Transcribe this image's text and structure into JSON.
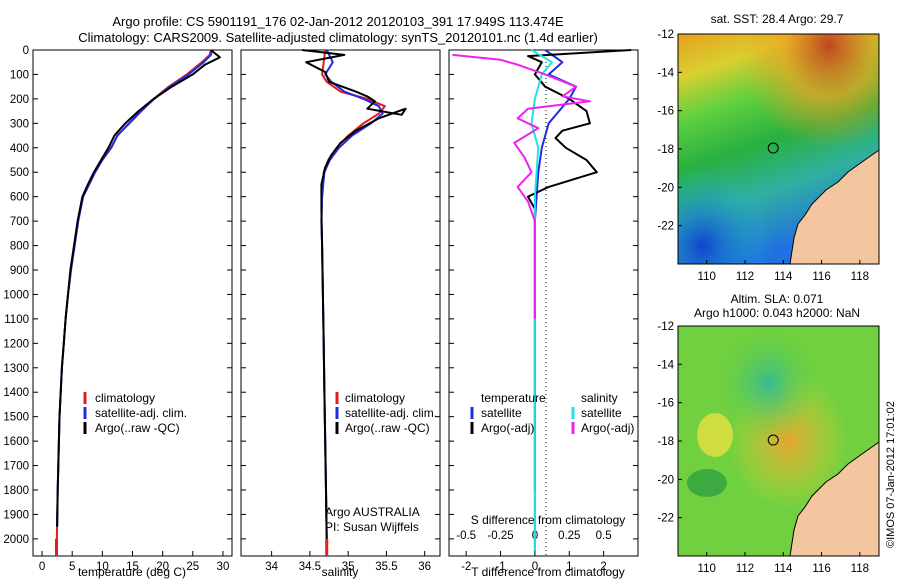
{
  "header": {
    "title_line1": "Argo profile: CS 5901191_176 02-Jan-2012 20120103_391 17.949S 113.474E",
    "title_line2": "Climatology: CARS2009. Satellite-adjusted climatology: synTS_20120101.nc (1.4d earlier)"
  },
  "colors": {
    "climatology": "#e41a1c",
    "satellite": "#1f2ee0",
    "argo": "#000000",
    "salinity_satellite": "#22e3e3",
    "salinity_argo": "#ee22ee",
    "land": "#f4c6a0"
  },
  "depth_axis": {
    "ticks": [
      0,
      100,
      200,
      300,
      400,
      500,
      600,
      700,
      800,
      900,
      1000,
      1100,
      1200,
      1300,
      1400,
      1500,
      1600,
      1700,
      1800,
      1900,
      2000
    ],
    "range": [
      0,
      2070
    ]
  },
  "chart_data": [
    {
      "type": "line",
      "name": "temperature-panel",
      "xlabel": "temperature (deg C)",
      "xlim": [
        -1.5,
        31.5
      ],
      "xticks": [
        0,
        5,
        10,
        15,
        20,
        25,
        30
      ],
      "ylim": [
        0,
        2070
      ],
      "legend": {
        "placement": "lower-left",
        "entries": [
          "climatology",
          "satellite-adj. clim.",
          "Argo(..raw -QC)"
        ]
      },
      "series": [
        {
          "color_key": "climatology",
          "x": [
            28.0,
            27.8,
            26.5,
            24.0,
            21.0,
            18.5,
            16.5,
            14.5,
            12.5,
            11.5,
            10.0,
            8.8,
            7.8,
            6.8,
            6.0,
            5.4,
            4.8,
            4.3,
            3.9,
            3.6,
            3.3,
            3.1,
            2.9,
            2.8,
            2.6,
            2.5,
            2.4
          ],
          "depth": [
            0,
            20,
            50,
            100,
            150,
            200,
            250,
            300,
            350,
            400,
            450,
            500,
            550,
            600,
            700,
            800,
            900,
            1000,
            1100,
            1200,
            1300,
            1400,
            1500,
            1600,
            1800,
            1950,
            2050
          ]
        },
        {
          "color_key": "satellite",
          "x": [
            28.2,
            28.0,
            26.8,
            24.3,
            21.2,
            18.6,
            16.4,
            14.4,
            12.5,
            11.4,
            10.0,
            8.8,
            7.8,
            6.8,
            6.0,
            5.4,
            4.8,
            4.3,
            3.9,
            3.6,
            3.3,
            3.1,
            2.9,
            2.8,
            2.6,
            2.5
          ],
          "depth": [
            0,
            20,
            50,
            100,
            150,
            200,
            250,
            300,
            350,
            400,
            450,
            500,
            550,
            600,
            700,
            800,
            900,
            1000,
            1100,
            1200,
            1300,
            1400,
            1500,
            1600,
            1800,
            1950
          ]
        },
        {
          "color_key": "argo",
          "x": [
            28.0,
            29.5,
            27.0,
            25.0,
            21.5,
            18.5,
            16.0,
            13.8,
            12.0,
            11.0,
            9.8,
            8.6,
            7.6,
            6.7,
            5.9,
            5.3,
            4.7,
            4.3,
            3.9,
            3.6,
            3.3,
            3.1,
            2.9,
            2.8,
            2.6,
            2.5
          ],
          "depth": [
            0,
            30,
            60,
            100,
            150,
            200,
            250,
            300,
            350,
            400,
            450,
            500,
            550,
            600,
            700,
            800,
            900,
            1000,
            1100,
            1200,
            1300,
            1400,
            1500,
            1600,
            1800,
            1950
          ]
        }
      ]
    },
    {
      "type": "line",
      "name": "salinity-panel",
      "xlabel": "salinity",
      "xlim": [
        33.6,
        36.2
      ],
      "xticks": [
        34,
        34.5,
        35,
        35.5,
        36
      ],
      "ylim": [
        0,
        2070
      ],
      "legend": {
        "placement": "lower-right",
        "entries": [
          "climatology",
          "satellite-adj. clim.",
          "Argo(..raw -QC)"
        ]
      },
      "annotation": {
        "line1": "Argo AUSTRALIA",
        "line2": "PI: Susan Wijffels"
      },
      "series": [
        {
          "color_key": "climatology",
          "x": [
            34.7,
            34.68,
            34.66,
            34.72,
            34.9,
            35.25,
            35.48,
            35.4,
            35.2,
            35.0,
            34.85,
            34.74,
            34.68,
            34.66,
            34.65,
            34.66,
            34.67,
            34.68,
            34.69,
            34.7,
            34.71,
            34.72,
            34.72
          ],
          "depth": [
            0,
            50,
            100,
            130,
            170,
            200,
            230,
            260,
            300,
            350,
            400,
            450,
            500,
            600,
            700,
            800,
            1000,
            1200,
            1400,
            1600,
            1800,
            2000,
            2050
          ]
        },
        {
          "color_key": "satellite",
          "x": [
            34.72,
            34.8,
            34.7,
            34.78,
            34.95,
            35.2,
            35.4,
            35.45,
            35.3,
            35.05,
            34.88,
            34.76,
            34.69,
            34.66,
            34.65,
            34.66,
            34.67,
            34.68,
            34.69,
            34.7,
            34.71,
            34.72
          ],
          "depth": [
            0,
            50,
            100,
            130,
            170,
            200,
            230,
            260,
            300,
            350,
            400,
            450,
            500,
            600,
            700,
            800,
            1000,
            1200,
            1400,
            1600,
            1800,
            2000
          ]
        },
        {
          "color_key": "argo",
          "x": [
            34.4,
            34.95,
            34.45,
            34.7,
            34.75,
            35.1,
            35.25,
            35.35,
            35.25,
            35.7,
            35.75,
            35.4,
            35.1,
            34.9,
            34.78,
            34.7,
            34.65,
            34.65,
            34.66,
            34.67,
            34.68,
            34.69,
            34.7,
            34.71,
            34.72
          ],
          "depth": [
            0,
            20,
            50,
            90,
            130,
            170,
            190,
            210,
            240,
            265,
            240,
            280,
            330,
            380,
            430,
            480,
            550,
            650,
            800,
            1000,
            1200,
            1400,
            1600,
            1800,
            2000
          ]
        }
      ]
    },
    {
      "type": "line",
      "name": "difference-panel",
      "xlabel": "T difference from climatology",
      "x2label": "S difference from climatology",
      "xlim": [
        -2.5,
        3.0
      ],
      "xticks": [
        -2,
        -1,
        0,
        1,
        2
      ],
      "x2ticks": [
        -0.5,
        -0.25,
        0,
        0.25,
        0.5
      ],
      "ylim": [
        0,
        2070
      ],
      "legend": {
        "placement": "lower-center",
        "temperature_title": "temperature",
        "salinity_title": "salinity",
        "entries": [
          "satellite",
          "Argo(-adj)"
        ]
      },
      "series": [
        {
          "color_key": "satellite",
          "x": [
            0.3,
            0.8,
            0.4,
            1.2,
            1.0,
            0.7,
            0.4,
            0.3,
            0.2,
            0.1,
            0.05,
            0.0,
            0.0,
            0.0,
            0.0,
            0.0,
            0.0
          ],
          "depth": [
            0,
            50,
            100,
            150,
            200,
            250,
            300,
            350,
            400,
            500,
            600,
            700,
            800,
            1000,
            1400,
            1800,
            2050
          ]
        },
        {
          "color_key": "argo",
          "x": [
            2.8,
            -0.2,
            0.2,
            0.0,
            0.3,
            1.0,
            1.5,
            1.6,
            0.8,
            0.6,
            0.9,
            1.5,
            1.8,
            0.4,
            -0.2,
            0.0,
            0.0,
            0.0,
            0.0,
            0.0
          ],
          "depth": [
            0,
            25,
            50,
            100,
            150,
            200,
            250,
            300,
            330,
            360,
            400,
            450,
            500,
            560,
            600,
            650,
            800,
            1000,
            1400,
            1800
          ]
        },
        {
          "color_key": "salinity_satellite",
          "x": [
            -0.1,
            0.5,
            0.2,
            0.0,
            -0.1,
            0.1,
            0.0,
            0.0,
            0.0,
            0.0,
            0.0,
            0.0
          ],
          "depth": [
            0,
            50,
            100,
            200,
            300,
            400,
            600,
            800,
            1000,
            1400,
            1800,
            2050
          ]
        },
        {
          "color_key": "salinity_argo",
          "x": [
            -2.4,
            -1.0,
            -0.5,
            0.3,
            1.2,
            0.8,
            1.6,
            -0.2,
            -0.5,
            0.1,
            -0.6,
            -0.3,
            -0.1,
            -0.5,
            -0.2,
            0.0,
            0.0,
            0.0
          ],
          "depth": [
            20,
            40,
            60,
            100,
            150,
            190,
            210,
            240,
            280,
            320,
            380,
            440,
            500,
            560,
            620,
            700,
            900,
            1100
          ]
        }
      ]
    },
    {
      "type": "heatmap",
      "name": "sst-map",
      "title": "sat. SST: 28.4 Argo: 29.7",
      "xlim": [
        108.5,
        119.0
      ],
      "ylim": [
        -24,
        -12
      ],
      "xticks": [
        110,
        112,
        114,
        116,
        118
      ],
      "yticks": [
        -12,
        -14,
        -16,
        -18,
        -20,
        -22
      ],
      "argo_location": {
        "lon": 113.474,
        "lat": -17.949
      }
    },
    {
      "type": "heatmap",
      "name": "sla-map",
      "title_line1": "Altim. SLA: 0.071",
      "title_line2": "Argo h1000: 0.043 h2000: NaN",
      "xlim": [
        108.5,
        119.0
      ],
      "ylim": [
        -24,
        -12
      ],
      "xticks": [
        110,
        112,
        114,
        116,
        118
      ],
      "yticks": [
        -12,
        -14,
        -16,
        -18,
        -20,
        -22
      ],
      "argo_location": {
        "lon": 113.474,
        "lat": -17.949
      }
    }
  ],
  "footer": {
    "credit": "©IMOS 07-Jan-2012 17:01:02"
  }
}
